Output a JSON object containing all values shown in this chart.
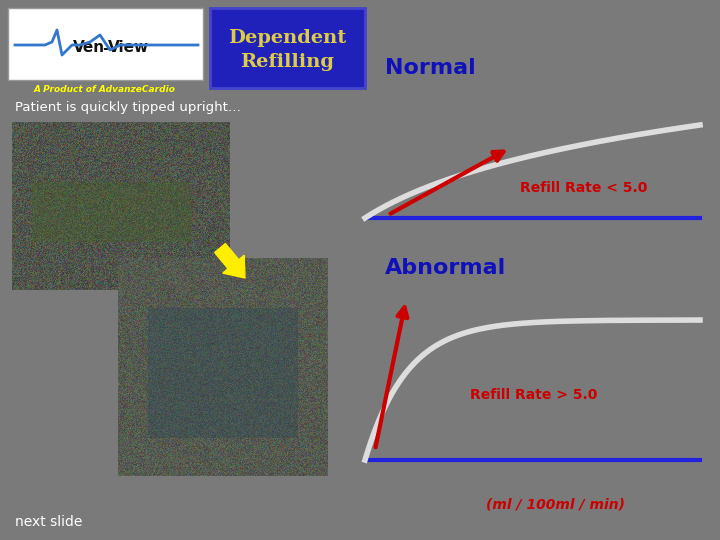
{
  "background_color": "#7a7a7a",
  "title_box_color": "#2020bb",
  "title_text": "Dependent\nRefilling",
  "title_text_color": "#ddcc44",
  "normal_label": "Normal",
  "abnormal_label": "Abnormal",
  "normal_label_color": "#1111bb",
  "abnormal_label_color": "#1111bb",
  "refill_rate_normal": "Refill Rate < 5.0",
  "refill_rate_abnormal": "Refill Rate > 5.0",
  "refill_rate_color": "#cc0000",
  "unit_label": "(ml / 100ml / min)",
  "unit_label_color": "#cc0000",
  "patient_text": "Patient is quickly tipped upright…",
  "patient_text_color": "#ffffff",
  "next_slide_text": "next slide",
  "next_slide_color": "#ffffff",
  "logo_bg": "#ffffff",
  "curve_color": "#dddddd",
  "baseline_color": "#2222dd",
  "arrow_color": "#cc0000",
  "product_text": "A Product of AdvanzeCardio",
  "product_text_color": "#ffff00",
  "logo_text": "Ven",
  "logo_text2": "-View",
  "logo_ecg_color": "#3377cc",
  "logo_text_color": "#111111"
}
